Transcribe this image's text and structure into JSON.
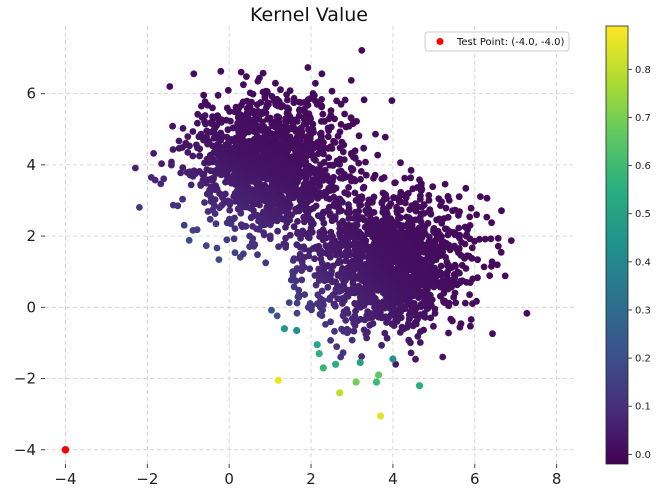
{
  "chart_data": {
    "type": "scatter",
    "title": "Kernel Value",
    "xlabel": "",
    "ylabel": "",
    "xlim": [
      -4.5,
      8.4
    ],
    "ylim": [
      -4.4,
      7.9
    ],
    "xticks": [
      -4,
      -2,
      0,
      2,
      4,
      6,
      8
    ],
    "yticks": [
      -4,
      -2,
      0,
      2,
      4,
      6
    ],
    "grid": true,
    "legend": {
      "placement": "top-right",
      "label": "Test Point: (-4.0, -4.0)"
    },
    "test_point": {
      "x": -4.0,
      "y": -4.0,
      "color": "#ff0000"
    },
    "clusters": [
      {
        "center": [
          1.0,
          4.0
        ],
        "spread": 0.95,
        "count": 1500
      },
      {
        "center": [
          4.0,
          1.3
        ],
        "spread": 0.95,
        "count": 1500
      }
    ],
    "highlighted_points": [
      {
        "x": 1.2,
        "y": -2.05,
        "v": 0.86
      },
      {
        "x": 2.7,
        "y": -2.4,
        "v": 0.8
      },
      {
        "x": 3.7,
        "y": -3.05,
        "v": 0.85
      },
      {
        "x": 3.1,
        "y": -2.1,
        "v": 0.7
      },
      {
        "x": 3.65,
        "y": -1.9,
        "v": 0.66
      },
      {
        "x": 3.6,
        "y": -2.1,
        "v": 0.6
      },
      {
        "x": 2.2,
        "y": -1.3,
        "v": 0.56
      },
      {
        "x": 2.3,
        "y": -1.7,
        "v": 0.58
      },
      {
        "x": 2.15,
        "y": -1.05,
        "v": 0.52
      },
      {
        "x": 2.6,
        "y": -1.6,
        "v": 0.55
      },
      {
        "x": 4.65,
        "y": -2.2,
        "v": 0.55
      },
      {
        "x": 1.35,
        "y": -0.6,
        "v": 0.46
      },
      {
        "x": 1.65,
        "y": -0.65,
        "v": 0.44
      },
      {
        "x": 3.2,
        "y": -1.55,
        "v": 0.5
      },
      {
        "x": 4.0,
        "y": -1.45,
        "v": 0.45
      }
    ],
    "colorbar": {
      "colormap": "viridis",
      "range": [
        -0.02,
        0.89
      ],
      "ticks": [
        0.0,
        0.1,
        0.2,
        0.3,
        0.4,
        0.5,
        0.6,
        0.7,
        0.8
      ],
      "tick_labels": [
        "0.0",
        "0.1",
        "0.2",
        "0.3",
        "0.4",
        "0.5",
        "0.6",
        "0.7",
        "0.8"
      ]
    }
  }
}
